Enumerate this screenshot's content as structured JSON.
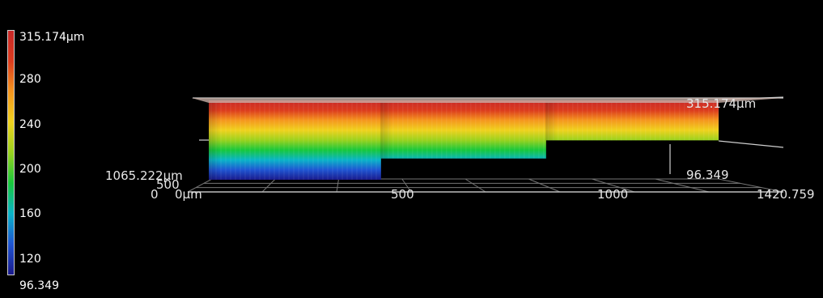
{
  "colors": {
    "background": "#000000",
    "colormap": [
      "#1a1a8c",
      "#1f55d2",
      "#0ab4c8",
      "#18c83c",
      "#9ad21e",
      "#f0d21e",
      "#f5961e",
      "#dc3c1e",
      "#c82828"
    ]
  },
  "scale_bar": {
    "top_label": "315.174µm",
    "ticks": [
      "280",
      "240",
      "200",
      "160",
      "120"
    ],
    "bottom_label": "96.349"
  },
  "axes": {
    "x_ticks": [
      "500",
      "1000"
    ],
    "x_end_label": "1420.759",
    "origin_label": "0µm",
    "y_origin_label": "0",
    "y_mid_label": "500",
    "y_end_label": "1065.222µm",
    "z_max_label": "315.174µm",
    "z_min_label": "96.349"
  },
  "chart_data": {
    "type": "area",
    "title": "",
    "xlabel": "",
    "ylabel": "",
    "units": "µm",
    "xlim": [
      0,
      1420.759
    ],
    "ylim": [
      0,
      1065.222
    ],
    "zlim": [
      96.349,
      315.174
    ],
    "colorbar_ticks": [
      280,
      240,
      200,
      160,
      120
    ],
    "profile": {
      "x": [
        0,
        480,
        480,
        940,
        940,
        1420.759
      ],
      "z_min": [
        96.349,
        96.349,
        155,
        155,
        205,
        205
      ],
      "z_max": [
        315.174,
        315.174,
        315.174,
        315.174,
        315.174,
        315.174
      ]
    }
  }
}
